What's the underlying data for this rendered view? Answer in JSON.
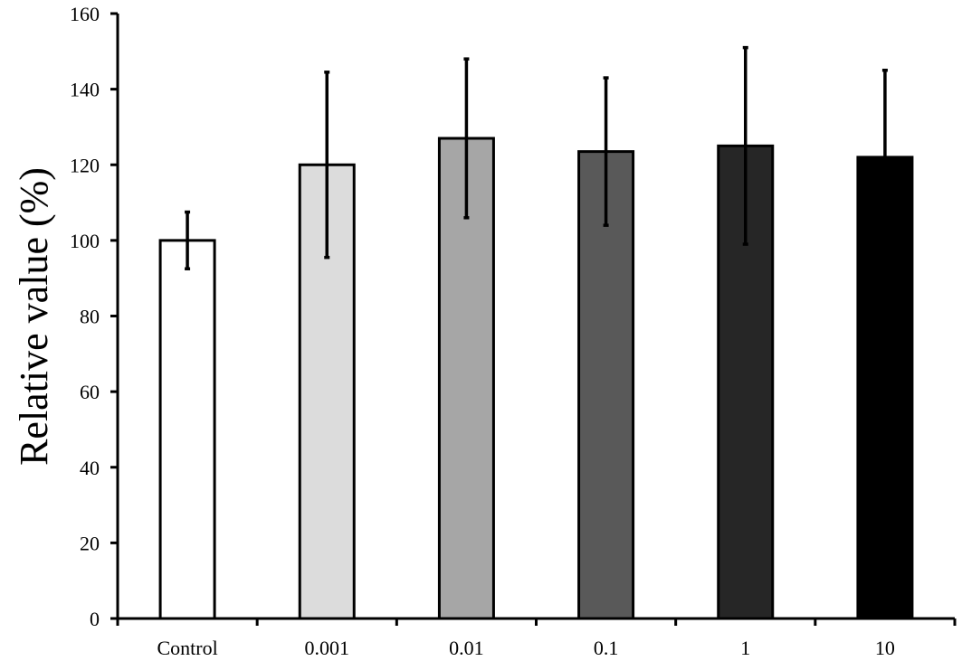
{
  "chart_data": {
    "type": "bar",
    "title": "",
    "xlabel": "",
    "ylabel": "Relative value (%)",
    "ylim": [
      0,
      160
    ],
    "yticks": [
      0,
      20,
      40,
      60,
      80,
      100,
      120,
      140,
      160
    ],
    "categories": [
      "Control",
      "0.001",
      "0.01",
      "0.1",
      "1",
      "10"
    ],
    "values": [
      100,
      120,
      127,
      123.5,
      125,
      122
    ],
    "error": [
      7.5,
      24.5,
      21,
      19.5,
      26,
      23
    ],
    "bar_colors": [
      "#ffffff",
      "#dcdcdc",
      "#a6a6a6",
      "#595959",
      "#262626",
      "#000000"
    ],
    "bar_edge_color": "#000000",
    "grid": false,
    "legend": "none"
  }
}
